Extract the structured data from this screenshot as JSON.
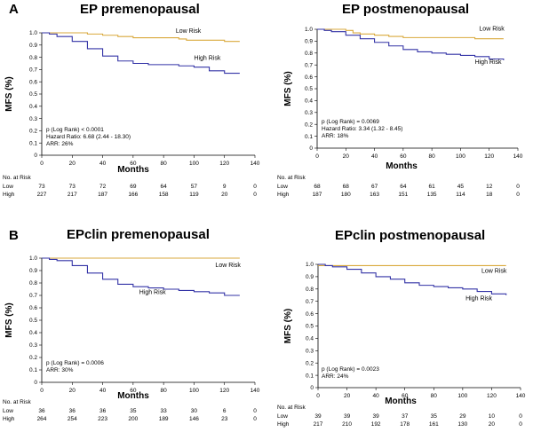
{
  "colors": {
    "low": "#D9A93C",
    "high": "#3333A6",
    "axis": "#000000"
  },
  "risk_header": "No. at Risk",
  "chart_data": [
    {
      "type": "line",
      "panel_letter": "A",
      "title": "EP premenopausal",
      "xlabel": "Months",
      "ylabel": "MFS (%)",
      "xlim": [
        0,
        140
      ],
      "ylim": [
        0,
        1.0
      ],
      "xticks": [
        0,
        20,
        40,
        60,
        80,
        100,
        120,
        140
      ],
      "yticks": [
        "0",
        "0.1",
        "0.2",
        "0.3",
        "0.4",
        "0.5",
        "0.6",
        "0.7",
        "0.8",
        "0.9",
        "1.0"
      ],
      "series": [
        {
          "name": "Low Risk",
          "label": "Low Risk",
          "color_key": "low",
          "x": [
            0,
            10,
            20,
            30,
            40,
            50,
            60,
            70,
            80,
            90,
            95,
            100,
            110,
            120,
            130
          ],
          "y": [
            1.0,
            1.0,
            1.0,
            0.99,
            0.98,
            0.97,
            0.96,
            0.96,
            0.96,
            0.95,
            0.94,
            0.94,
            0.94,
            0.93,
            0.93
          ],
          "label_x": 88,
          "label_y": 1.0
        },
        {
          "name": "High Risk",
          "label": "High Risk",
          "color_key": "high",
          "x": [
            0,
            5,
            10,
            20,
            30,
            40,
            50,
            60,
            70,
            80,
            90,
            100,
            110,
            120,
            130
          ],
          "y": [
            1.0,
            0.99,
            0.97,
            0.93,
            0.87,
            0.81,
            0.77,
            0.75,
            0.74,
            0.74,
            0.73,
            0.72,
            0.69,
            0.67,
            0.67
          ],
          "label_x": 100,
          "label_y": 0.78
        }
      ],
      "annotations": [
        "p (Log Rank) < 0.0001",
        "Hazard Ratio: 6.68 (2.44 - 18.30)",
        "ARR: 26%"
      ],
      "risk_table": {
        "x": [
          0,
          20,
          40,
          60,
          80,
          100,
          120,
          140
        ],
        "rows": [
          {
            "label": "Low",
            "values": [
              "73",
              "73",
              "72",
              "69",
              "64",
              "57",
              "9",
              "0"
            ]
          },
          {
            "label": "High",
            "values": [
              "227",
              "217",
              "187",
              "166",
              "158",
              "119",
              "20",
              "0"
            ]
          }
        ]
      }
    },
    {
      "type": "line",
      "panel_letter": "",
      "title": "EP postmenopausal",
      "xlabel": "Months",
      "ylabel": "MFS (%)",
      "xlim": [
        0,
        140
      ],
      "ylim": [
        0,
        1.0
      ],
      "xticks": [
        0,
        20,
        40,
        60,
        80,
        100,
        120,
        140
      ],
      "yticks": [
        "0",
        "0.1",
        "0.2",
        "0.3",
        "0.4",
        "0.5",
        "0.6",
        "0.7",
        "0.8",
        "0.9",
        "1.0"
      ],
      "series": [
        {
          "name": "Low Risk",
          "label": "Low Risk",
          "color_key": "low",
          "x": [
            0,
            10,
            20,
            25,
            30,
            40,
            50,
            60,
            70,
            80,
            90,
            100,
            110,
            120,
            130
          ],
          "y": [
            1.0,
            1.0,
            0.99,
            0.97,
            0.96,
            0.95,
            0.94,
            0.93,
            0.93,
            0.93,
            0.93,
            0.93,
            0.92,
            0.92,
            0.92
          ],
          "label_x": 113,
          "label_y": 0.99
        },
        {
          "name": "High Risk",
          "label": "High Risk",
          "color_key": "high",
          "x": [
            0,
            5,
            10,
            20,
            30,
            40,
            50,
            60,
            70,
            80,
            90,
            100,
            110,
            120,
            130
          ],
          "y": [
            1.0,
            0.99,
            0.98,
            0.95,
            0.92,
            0.89,
            0.86,
            0.83,
            0.81,
            0.8,
            0.79,
            0.78,
            0.77,
            0.75,
            0.74
          ],
          "label_x": 110,
          "label_y": 0.71
        }
      ],
      "annotations": [
        "p (Log Rank) = 0.0069",
        "Hazard Ratio: 3.34 (1.32 - 8.45)",
        "ARR: 18%"
      ],
      "risk_table": {
        "x": [
          0,
          20,
          40,
          60,
          80,
          100,
          120,
          140
        ],
        "rows": [
          {
            "label": "Low",
            "values": [
              "68",
              "68",
              "67",
              "64",
              "61",
              "45",
              "12",
              "0"
            ]
          },
          {
            "label": "High",
            "values": [
              "187",
              "180",
              "163",
              "151",
              "135",
              "114",
              "18",
              "0"
            ]
          }
        ]
      }
    },
    {
      "type": "line",
      "panel_letter": "B",
      "title": "EPclin premenopausal",
      "xlabel": "Months",
      "ylabel": "MFS (%)",
      "xlim": [
        0,
        140
      ],
      "ylim": [
        0,
        1.0
      ],
      "xticks": [
        0,
        20,
        40,
        60,
        80,
        100,
        120,
        140
      ],
      "yticks": [
        "0",
        "0.1",
        "0.2",
        "0.3",
        "0.4",
        "0.5",
        "0.6",
        "0.7",
        "0.8",
        "0.9",
        "1.0"
      ],
      "series": [
        {
          "name": "Low Risk",
          "label": "Low Risk",
          "color_key": "low",
          "x": [
            0,
            130
          ],
          "y": [
            1.0,
            1.0
          ],
          "label_x": 114,
          "label_y": 0.93
        },
        {
          "name": "High Risk",
          "label": "High Risk",
          "color_key": "high",
          "x": [
            0,
            5,
            10,
            20,
            30,
            40,
            50,
            60,
            70,
            80,
            90,
            100,
            110,
            120,
            130
          ],
          "y": [
            1.0,
            0.99,
            0.98,
            0.94,
            0.88,
            0.83,
            0.79,
            0.77,
            0.76,
            0.75,
            0.74,
            0.73,
            0.72,
            0.7,
            0.7
          ],
          "label_x": 64,
          "label_y": 0.71
        }
      ],
      "annotations": [
        "p (Log Rank) = 0.0006",
        "ARR: 30%"
      ],
      "risk_table": {
        "x": [
          0,
          20,
          40,
          60,
          80,
          100,
          120,
          140
        ],
        "rows": [
          {
            "label": "Low",
            "values": [
              "36",
              "36",
              "36",
              "35",
              "33",
              "30",
              "6",
              "0"
            ]
          },
          {
            "label": "High",
            "values": [
              "264",
              "254",
              "223",
              "200",
              "189",
              "146",
              "23",
              "0"
            ]
          }
        ]
      }
    },
    {
      "type": "line",
      "panel_letter": "",
      "title": "EPclin postmenopausal",
      "xlabel": "Months",
      "ylabel": "MFS (%)",
      "xlim": [
        0,
        140
      ],
      "ylim": [
        0,
        1.0
      ],
      "xticks": [
        0,
        20,
        40,
        60,
        80,
        100,
        120,
        140
      ],
      "yticks": [
        "0",
        "0.1",
        "0.2",
        "0.3",
        "0.4",
        "0.5",
        "0.6",
        "0.7",
        "0.8",
        "0.9",
        "1.0"
      ],
      "series": [
        {
          "name": "Low Risk",
          "label": "Low Risk",
          "color_key": "low",
          "x": [
            0,
            130
          ],
          "y": [
            0.99,
            0.99
          ],
          "label_x": 113,
          "label_y": 0.93
        },
        {
          "name": "High Risk",
          "label": "High Risk",
          "color_key": "high",
          "x": [
            0,
            5,
            10,
            20,
            30,
            40,
            50,
            60,
            70,
            80,
            90,
            100,
            110,
            120,
            130
          ],
          "y": [
            1.0,
            0.99,
            0.98,
            0.96,
            0.93,
            0.9,
            0.88,
            0.85,
            0.83,
            0.82,
            0.81,
            0.8,
            0.78,
            0.76,
            0.75
          ],
          "label_x": 102,
          "label_y": 0.71
        }
      ],
      "annotations": [
        "p (Log Rank) = 0.0023",
        "ARR: 24%"
      ],
      "risk_table": {
        "x": [
          0,
          20,
          40,
          60,
          80,
          100,
          120,
          140
        ],
        "rows": [
          {
            "label": "Low",
            "values": [
              "39",
              "39",
              "39",
              "37",
              "35",
              "29",
              "10",
              "0"
            ]
          },
          {
            "label": "High",
            "values": [
              "217",
              "210",
              "192",
              "178",
              "161",
              "130",
              "20",
              "0"
            ]
          }
        ]
      }
    }
  ]
}
